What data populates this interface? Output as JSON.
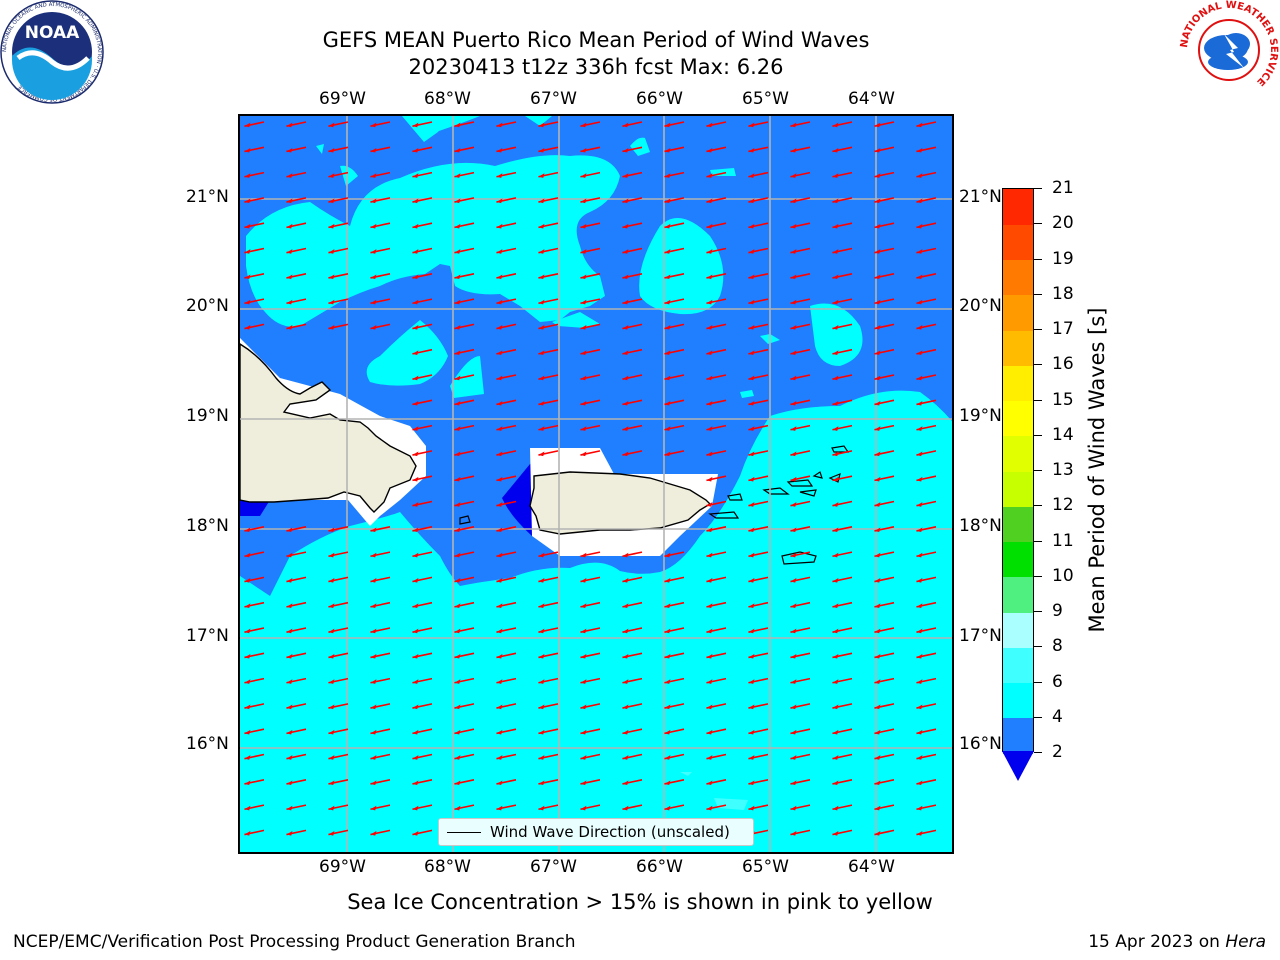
{
  "title": {
    "line1": "GEFS MEAN Puerto Rico Mean Period of Wind Waves",
    "line2": "20230413 t12z 336h fcst   Max: 6.26"
  },
  "map": {
    "lon_labels": [
      "69°W",
      "68°W",
      "67°W",
      "66°W",
      "65°W",
      "64°W"
    ],
    "lat_labels": [
      "21°N",
      "20°N",
      "19°N",
      "18°N",
      "17°N",
      "16°N"
    ],
    "legend_label": "Wind Wave Direction (unscaled)",
    "colors": {
      "deep_blue": "#0000ee",
      "blue": "#1f7fff",
      "cyan": "#00ffff",
      "land": "#efeedc",
      "arrow": "#ff0000"
    }
  },
  "colorbar": {
    "title": "Mean Period of Wind Waves [s]",
    "ticks": [
      "2",
      "4",
      "6",
      "8",
      "9",
      "10",
      "11",
      "12",
      "13",
      "14",
      "15",
      "16",
      "17",
      "18",
      "19",
      "20",
      "21"
    ],
    "colors": [
      "#1f7fff",
      "#00ffff",
      "#40ffff",
      "#aaffff",
      "#50f080",
      "#00e000",
      "#50d020",
      "#c8ff00",
      "#e2ff00",
      "#ffff00",
      "#ffee00",
      "#ffbb00",
      "#ff9a00",
      "#ff7a00",
      "#ff4a00",
      "#ff2800",
      "#ff0000"
    ],
    "under_color": "#0000ee"
  },
  "subtitle": "Sea Ice Concentration > 15% is shown in pink to yellow",
  "footer": {
    "left": "NCEP/EMC/Verification Post Processing Product Generation Branch",
    "date": "15 Apr 2023 on",
    "machine": "Hera"
  },
  "logos": {
    "noaa_text": "NOAA",
    "noaa_ring": "NATIONAL OCEANIC AND ATMOSPHERIC ADMINISTRATION · U.S. DEPARTMENT OF COMMERCE",
    "nws_ring": "NATIONAL WEATHER SERVICE"
  }
}
